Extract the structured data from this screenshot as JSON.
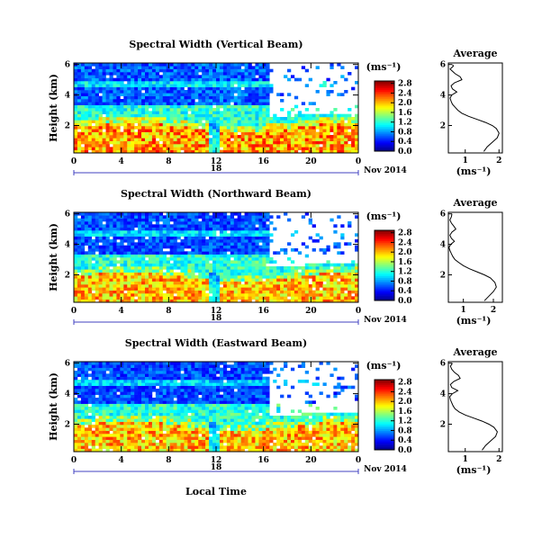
{
  "figure": {
    "panel_titles": [
      "Spectral Width (Vertical Beam)",
      "Spectral Width (Northward Beam)",
      "Spectral Width (Eastward Beam)"
    ],
    "ylabel": "Height (km)",
    "xlabel": "Local Time",
    "date_label": "Nov 2014",
    "day_label": "18",
    "colorbar_unit": "(ms⁻¹)",
    "profile_title": "Average",
    "profile_xlabel": "(ms⁻¹)"
  },
  "chart_data": [
    {
      "type": "heatmap",
      "title": "Spectral Width (Vertical Beam)",
      "xlabel": "",
      "ylabel": "Height (km)",
      "x_ticks": [
        "0",
        "4",
        "8",
        "12",
        "16",
        "20",
        "0"
      ],
      "y_ticks": [
        "2",
        "4",
        "6"
      ],
      "xlim": [
        0,
        24
      ],
      "ylim": [
        0.2,
        6.1
      ],
      "colorbar": {
        "ticks": [
          "0.0",
          "0.4",
          "0.8",
          "1.2",
          "1.6",
          "2.0",
          "2.4",
          "2.8"
        ],
        "range": [
          0,
          2.9
        ]
      },
      "description_values": {
        "low_layer_width": 2.2,
        "upper_layer_width": 0.6
      }
    },
    {
      "type": "heatmap",
      "title": "Spectral Width (Northward Beam)",
      "xlabel": "",
      "ylabel": "Height (km)",
      "x_ticks": [
        "0",
        "4",
        "8",
        "12",
        "16",
        "20",
        "0"
      ],
      "y_ticks": [
        "2",
        "4",
        "6"
      ],
      "xlim": [
        0,
        24
      ],
      "ylim": [
        0.2,
        6.1
      ],
      "colorbar": {
        "ticks": [
          "0.0",
          "0.4",
          "0.8",
          "1.2",
          "1.6",
          "2.0",
          "2.4",
          "2.8"
        ],
        "range": [
          0,
          2.9
        ]
      },
      "description_values": {
        "low_layer_width": 2.1,
        "upper_layer_width": 0.55
      }
    },
    {
      "type": "heatmap",
      "title": "Spectral Width (Eastward Beam)",
      "xlabel": "Local Time",
      "ylabel": "Height (km)",
      "x_ticks": [
        "0",
        "4",
        "8",
        "12",
        "16",
        "20",
        "0"
      ],
      "y_ticks": [
        "2",
        "4",
        "6"
      ],
      "xlim": [
        0,
        24
      ],
      "ylim": [
        0.2,
        6.1
      ],
      "colorbar": {
        "ticks": [
          "0.0",
          "0.4",
          "0.8",
          "1.2",
          "1.6",
          "2.0",
          "2.4",
          "2.8"
        ],
        "range": [
          0,
          2.9
        ]
      },
      "description_values": {
        "low_layer_width": 2.1,
        "upper_layer_width": 0.55
      }
    },
    {
      "type": "line",
      "title": "Average",
      "xlabel": "(ms⁻¹)",
      "ylabel": "",
      "x_ticks": [
        "1",
        "2"
      ],
      "y_ticks": [
        "2",
        "4",
        "6"
      ],
      "xlim": [
        0.5,
        2.1
      ],
      "ylim": [
        0.2,
        6.1
      ],
      "series": [
        {
          "x": [
            1.55,
            1.65,
            1.8,
            1.95,
            2.0,
            1.92,
            1.8,
            1.6,
            1.35,
            1.1,
            0.9,
            0.78,
            0.7,
            0.62,
            0.58,
            0.55,
            0.6,
            0.75,
            0.62,
            0.58,
            0.68,
            0.9,
            0.85,
            0.7,
            0.6,
            0.55,
            0.6,
            0.65,
            0.62
          ],
          "y": [
            0.3,
            0.6,
            0.9,
            1.2,
            1.5,
            1.8,
            2.0,
            2.2,
            2.4,
            2.6,
            2.8,
            3.0,
            3.2,
            3.4,
            3.6,
            3.8,
            4.0,
            4.2,
            4.4,
            4.6,
            4.8,
            5.0,
            5.2,
            5.4,
            5.6,
            5.7,
            5.8,
            5.9,
            6.0
          ]
        }
      ]
    },
    {
      "type": "line",
      "title": "Average",
      "xlabel": "(ms⁻¹)",
      "ylabel": "",
      "x_ticks": [
        "1",
        "2"
      ],
      "y_ticks": [
        "2",
        "4",
        "6"
      ],
      "xlim": [
        0.5,
        2.3
      ],
      "ylim": [
        0.2,
        6.1
      ],
      "series": [
        {
          "x": [
            1.7,
            1.85,
            2.0,
            2.1,
            2.05,
            1.9,
            1.7,
            1.45,
            1.2,
            1.0,
            0.85,
            0.72,
            0.65,
            0.6,
            0.55,
            0.52,
            0.58,
            0.7,
            0.6,
            0.55,
            0.62,
            0.75,
            0.68,
            0.6,
            0.55,
            0.6,
            0.62
          ],
          "y": [
            0.3,
            0.6,
            0.9,
            1.2,
            1.5,
            1.8,
            2.0,
            2.2,
            2.4,
            2.6,
            2.8,
            3.0,
            3.2,
            3.4,
            3.6,
            3.8,
            4.0,
            4.2,
            4.4,
            4.6,
            4.8,
            5.0,
            5.2,
            5.4,
            5.6,
            5.8,
            6.0
          ]
        }
      ]
    },
    {
      "type": "line",
      "title": "Average",
      "xlabel": "(ms⁻¹)",
      "ylabel": "",
      "x_ticks": [
        "1",
        "2"
      ],
      "y_ticks": [
        "2",
        "4",
        "6"
      ],
      "xlim": [
        0.5,
        2.1
      ],
      "ylim": [
        0.2,
        6.1
      ],
      "series": [
        {
          "x": [
            1.5,
            1.6,
            1.75,
            1.9,
            1.95,
            1.85,
            1.7,
            1.5,
            1.25,
            1.0,
            0.82,
            0.7,
            0.64,
            0.6,
            0.56,
            0.54,
            0.62,
            0.78,
            0.6,
            0.56,
            0.66,
            0.85,
            0.8,
            0.68,
            0.6,
            0.56,
            0.62
          ],
          "y": [
            0.3,
            0.6,
            0.9,
            1.2,
            1.5,
            1.8,
            2.0,
            2.2,
            2.4,
            2.6,
            2.8,
            3.0,
            3.2,
            3.4,
            3.6,
            3.8,
            4.0,
            4.2,
            4.4,
            4.6,
            4.8,
            5.0,
            5.2,
            5.4,
            5.6,
            5.8,
            6.0
          ]
        }
      ]
    }
  ]
}
